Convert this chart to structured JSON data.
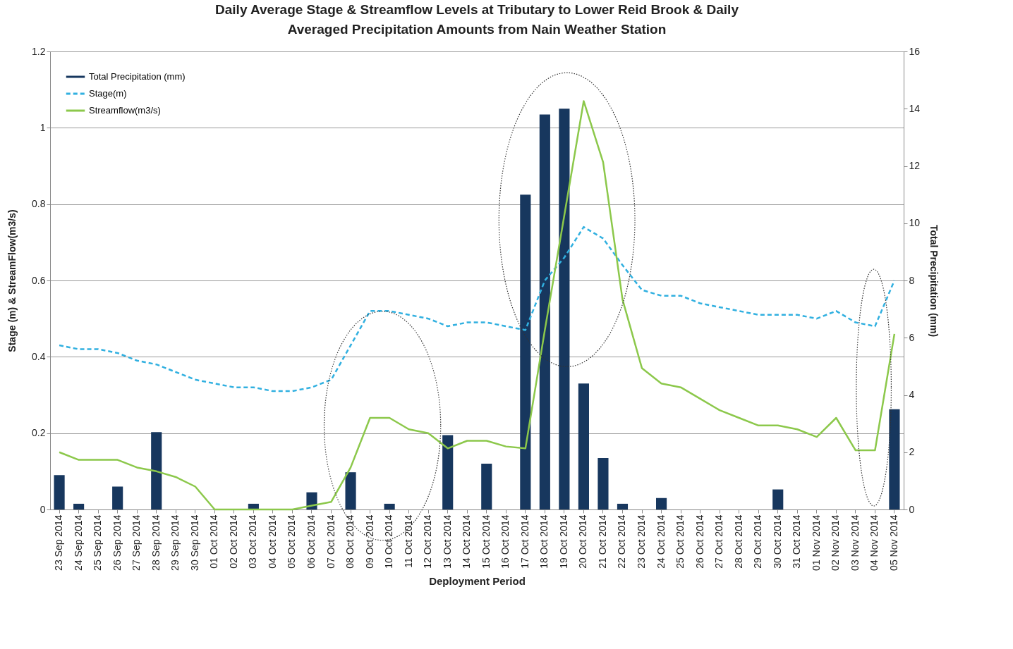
{
  "chart_data": {
    "type": "line",
    "title": "Daily Average Stage & Streamflow Levels at Tributary to Lower Reid Brook & Daily Averaged Precipitation Amounts from Nain Weather Station",
    "xlabel": "Deployment Period",
    "ylabel": "Stage  (m) & StreamFlow(m3/s)",
    "y2label": "Total Precipitation  (mm)",
    "categories": [
      "23 Sep 2014",
      "24 Sep 2014",
      "25 Sep 2014",
      "26 Sep 2014",
      "27 Sep 2014",
      "28 Sep 2014",
      "29 Sep 2014",
      "30 Sep 2014",
      "01 Oct 2014",
      "02 Oct 2014",
      "03 Oct 2014",
      "04 Oct 2014",
      "05 Oct 2014",
      "06 Oct 2014",
      "07 Oct 2014",
      "08 Oct 2014",
      "09 Oct 2014",
      "10 Oct 2014",
      "11 Oct 2014",
      "12 Oct 2014",
      "13 Oct 2014",
      "14 Oct 2014",
      "15 Oct 2014",
      "16 Oct 2014",
      "17 Oct 2014",
      "18 Oct 2014",
      "19 Oct 2014",
      "20 Oct 2014",
      "21 Oct 2014",
      "22 Oct 2014",
      "23 Oct 2014",
      "24 Oct 2014",
      "25 Oct 2014",
      "26 Oct 2014",
      "27 Oct 2014",
      "28 Oct 2014",
      "29 Oct 2014",
      "30 Oct 2014",
      "31 Oct 2014",
      "01 Nov 2014",
      "02 Nov 2014",
      "03 Nov 2014",
      "04 Nov 2014",
      "05 Nov 2014"
    ],
    "series": [
      {
        "name": "Total Precipitation (mm)",
        "type": "bar",
        "axis": "y2",
        "color": "#17375e",
        "values": [
          1.2,
          0.2,
          0,
          0.8,
          0,
          2.7,
          0,
          0,
          0,
          0,
          0.2,
          0,
          0,
          0.6,
          0,
          1.3,
          0,
          0.2,
          0,
          0,
          2.6,
          0,
          1.6,
          0,
          11,
          13.8,
          14,
          4.4,
          1.8,
          0.2,
          0,
          0.4,
          0,
          0,
          0,
          0,
          0,
          0.7,
          0,
          0,
          0,
          0,
          0,
          3.5
        ]
      },
      {
        "name": "Stage(m)",
        "line_style": "dashed",
        "color": "#31b0e0",
        "values": [
          0.43,
          0.42,
          0.42,
          0.41,
          0.39,
          0.38,
          0.36,
          0.34,
          0.33,
          0.32,
          0.32,
          0.31,
          0.31,
          0.32,
          0.34,
          0.43,
          0.52,
          0.52,
          0.51,
          0.5,
          0.48,
          0.49,
          0.49,
          0.48,
          0.47,
          0.6,
          0.66,
          0.74,
          0.71,
          0.64,
          0.575,
          0.56,
          0.56,
          0.54,
          0.53,
          0.52,
          0.51,
          0.51,
          0.51,
          0.5,
          0.52,
          0.49,
          0.48,
          0.6
        ]
      },
      {
        "name": "Streamflow(m3/s)",
        "line_style": "solid",
        "color": "#8cc84b",
        "values": [
          0.15,
          0.13,
          0.13,
          0.13,
          0.11,
          0.1,
          0.085,
          0.06,
          0,
          0,
          0,
          0,
          0,
          0.01,
          0.02,
          0.11,
          0.24,
          0.24,
          0.21,
          0.2,
          0.16,
          0.18,
          0.18,
          0.165,
          0.16,
          0.47,
          0.77,
          1.07,
          0.91,
          0.55,
          0.37,
          0.33,
          0.32,
          0.29,
          0.26,
          0.24,
          0.22,
          0.22,
          0.21,
          0.19,
          0.24,
          0.155,
          0.155,
          0.46
        ]
      }
    ],
    "ylim": [
      0,
      1.2
    ],
    "yticks": [
      0,
      0.2,
      0.4,
      0.6,
      0.8,
      1,
      1.2
    ],
    "y2lim": [
      0,
      16
    ],
    "y2ticks": [
      0,
      2,
      4,
      6,
      8,
      10,
      12,
      14,
      16
    ],
    "grid": "y",
    "legend": "top left",
    "marker": "none"
  }
}
